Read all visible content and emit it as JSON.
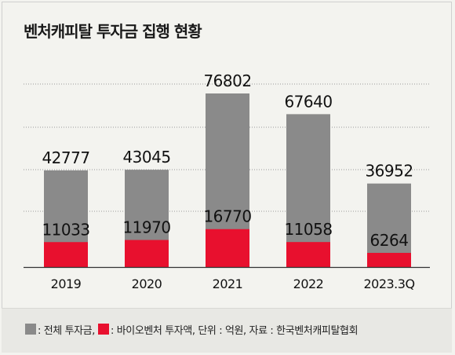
{
  "chart_data": {
    "type": "bar",
    "title": "벤처캐피탈 투자금 집행 현황",
    "categories": [
      "2019",
      "2020",
      "2021",
      "2022",
      "2023.3Q"
    ],
    "series": [
      {
        "name": "전체 투자금",
        "values": [
          42777,
          43045,
          76802,
          67640,
          36952
        ],
        "color": "#8a8a8a"
      },
      {
        "name": "바이오벤처 투자액",
        "values": [
          11033,
          11970,
          16770,
          11058,
          6264
        ],
        "color": "#e8102e"
      }
    ],
    "ylim": [
      0,
      90000
    ],
    "grid": true,
    "legend_position": "bottom"
  },
  "legend": {
    "total_label": ": 전체 투자금,",
    "bio_label": ": 바이오벤처 투자액, 단위 : 억원, 자료 : 한국벤처캐피탈협회"
  }
}
